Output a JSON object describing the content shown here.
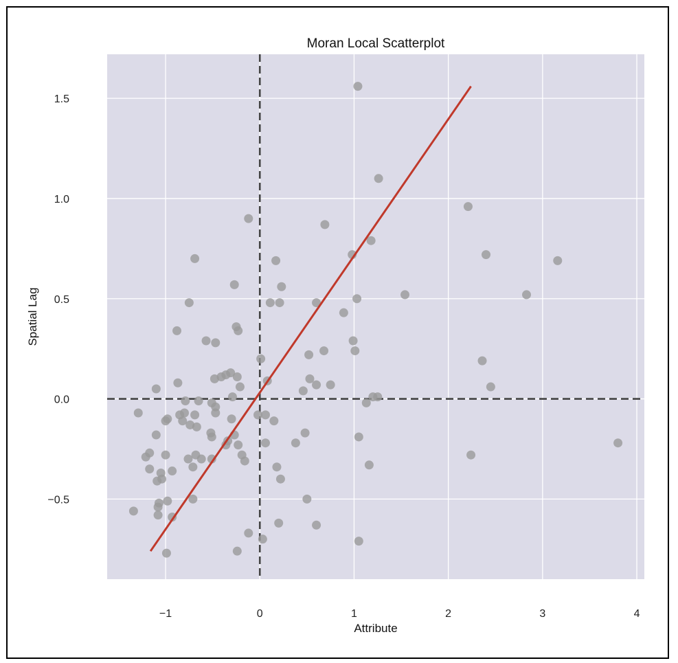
{
  "chart_data": {
    "type": "scatter",
    "title": "Moran Local Scatterplot",
    "xlabel": "Attribute",
    "ylabel": "Spatial Lag",
    "xlim": [
      -1.62,
      4.08
    ],
    "ylim": [
      -0.9,
      1.72
    ],
    "xticks": [
      -1,
      0,
      1,
      2,
      3,
      4
    ],
    "xtick_labels": [
      "−1",
      "0",
      "1",
      "2",
      "3",
      "4"
    ],
    "yticks": [
      -0.5,
      0.0,
      0.5,
      1.0,
      1.5
    ],
    "ytick_labels": [
      "−0.5",
      "0.0",
      "0.5",
      "1.0",
      "1.5"
    ],
    "grid": true,
    "background": "#dcdbe8",
    "point_color": "#9a9a9a",
    "fit_line": {
      "color": "#c0392b",
      "x": [
        -1.16,
        2.24
      ],
      "y": [
        -0.76,
        1.56
      ]
    },
    "reference_lines": {
      "x": 0,
      "y": 0,
      "style": "dashed",
      "color": "#444444"
    },
    "points": [
      [
        1.04,
        1.56
      ],
      [
        1.26,
        1.1
      ],
      [
        2.21,
        0.96
      ],
      [
        -0.12,
        0.9
      ],
      [
        0.69,
        0.87
      ],
      [
        1.18,
        0.79
      ],
      [
        0.98,
        0.72
      ],
      [
        2.4,
        0.72
      ],
      [
        -0.69,
        0.7
      ],
      [
        0.17,
        0.69
      ],
      [
        3.16,
        0.69
      ],
      [
        -0.27,
        0.57
      ],
      [
        0.23,
        0.56
      ],
      [
        1.54,
        0.52
      ],
      [
        2.83,
        0.52
      ],
      [
        1.03,
        0.5
      ],
      [
        0.11,
        0.48
      ],
      [
        0.21,
        0.48
      ],
      [
        -0.75,
        0.48
      ],
      [
        0.6,
        0.48
      ],
      [
        0.89,
        0.43
      ],
      [
        -0.25,
        0.36
      ],
      [
        -0.23,
        0.34
      ],
      [
        -0.88,
        0.34
      ],
      [
        -0.57,
        0.29
      ],
      [
        -0.47,
        0.28
      ],
      [
        0.99,
        0.29
      ],
      [
        1.01,
        0.24
      ],
      [
        0.68,
        0.24
      ],
      [
        0.52,
        0.22
      ],
      [
        0.01,
        0.2
      ],
      [
        2.36,
        0.19
      ],
      [
        -0.31,
        0.13
      ],
      [
        -0.36,
        0.12
      ],
      [
        -0.24,
        0.11
      ],
      [
        -0.41,
        0.11
      ],
      [
        -0.48,
        0.1
      ],
      [
        0.53,
        0.1
      ],
      [
        0.08,
        0.09
      ],
      [
        -0.87,
        0.08
      ],
      [
        0.6,
        0.07
      ],
      [
        0.75,
        0.07
      ],
      [
        -0.21,
        0.06
      ],
      [
        2.45,
        0.06
      ],
      [
        -1.1,
        0.05
      ],
      [
        0.46,
        0.04
      ],
      [
        -0.29,
        0.01
      ],
      [
        1.2,
        0.01
      ],
      [
        1.25,
        0.01
      ],
      [
        -0.79,
        -0.01
      ],
      [
        -0.65,
        -0.01
      ],
      [
        -0.51,
        -0.02
      ],
      [
        1.13,
        -0.02
      ],
      [
        -0.47,
        -0.04
      ],
      [
        -1.29,
        -0.07
      ],
      [
        -0.8,
        -0.07
      ],
      [
        -0.69,
        -0.08
      ],
      [
        -0.85,
        -0.08
      ],
      [
        -0.02,
        -0.08
      ],
      [
        0.06,
        -0.08
      ],
      [
        -0.47,
        -0.07
      ],
      [
        -0.98,
        -0.1
      ],
      [
        -1.0,
        -0.11
      ],
      [
        0.15,
        -0.11
      ],
      [
        -0.82,
        -0.11
      ],
      [
        -0.3,
        -0.1
      ],
      [
        -0.74,
        -0.13
      ],
      [
        -0.67,
        -0.14
      ],
      [
        -0.52,
        -0.17
      ],
      [
        0.48,
        -0.17
      ],
      [
        -1.1,
        -0.18
      ],
      [
        -0.27,
        -0.18
      ],
      [
        -0.51,
        -0.19
      ],
      [
        1.05,
        -0.19
      ],
      [
        -0.34,
        -0.21
      ],
      [
        0.06,
        -0.22
      ],
      [
        0.38,
        -0.22
      ],
      [
        -0.23,
        -0.23
      ],
      [
        -0.36,
        -0.23
      ],
      [
        3.8,
        -0.22
      ],
      [
        -1.17,
        -0.27
      ],
      [
        -0.68,
        -0.28
      ],
      [
        -0.19,
        -0.28
      ],
      [
        2.24,
        -0.28
      ],
      [
        -1.21,
        -0.29
      ],
      [
        -1.0,
        -0.28
      ],
      [
        -0.76,
        -0.3
      ],
      [
        -0.62,
        -0.3
      ],
      [
        -0.51,
        -0.3
      ],
      [
        -0.16,
        -0.31
      ],
      [
        1.16,
        -0.33
      ],
      [
        -0.71,
        -0.34
      ],
      [
        0.18,
        -0.34
      ],
      [
        -1.17,
        -0.35
      ],
      [
        -0.93,
        -0.36
      ],
      [
        -1.05,
        -0.37
      ],
      [
        -1.04,
        -0.4
      ],
      [
        -1.09,
        -0.41
      ],
      [
        0.22,
        -0.4
      ],
      [
        0.5,
        -0.5
      ],
      [
        -0.71,
        -0.5
      ],
      [
        -0.98,
        -0.51
      ],
      [
        -1.07,
        -0.52
      ],
      [
        -1.08,
        -0.54
      ],
      [
        -1.34,
        -0.56
      ],
      [
        -1.08,
        -0.58
      ],
      [
        -0.93,
        -0.59
      ],
      [
        0.2,
        -0.62
      ],
      [
        0.6,
        -0.63
      ],
      [
        -0.12,
        -0.67
      ],
      [
        0.03,
        -0.7
      ],
      [
        1.05,
        -0.71
      ],
      [
        -0.24,
        -0.76
      ],
      [
        -0.99,
        -0.77
      ]
    ]
  }
}
